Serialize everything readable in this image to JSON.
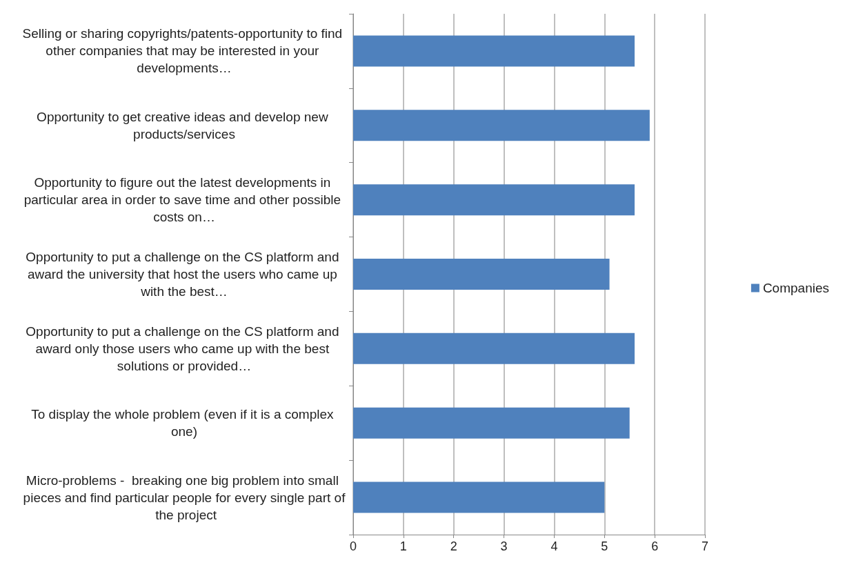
{
  "chart_data": {
    "type": "bar",
    "orientation": "horizontal",
    "categories": [
      "Selling or sharing copyrights/patents-opportunity to find other companies that may be interested in your developments…",
      "Opportunity to get creative ideas and develop new products/services",
      "Opportunity to figure out the latest developments in particular area in order to save time and other possible costs on…",
      "Opportunity to put a challenge on the CS platform and award the university that host the users who came up with the best…",
      "Opportunity to put a challenge on the CS platform and award only those users who came up with the best solutions or provided…",
      "To display the whole problem (even if it is a complex one)",
      "Micro-problems -  breaking one big problem into small pieces and find particular people for every single part of the project"
    ],
    "series": [
      {
        "name": "Companies",
        "color": "#4f81bd",
        "values": [
          5.6,
          5.9,
          5.6,
          5.1,
          5.6,
          5.5,
          5.0
        ]
      }
    ],
    "xlim": [
      0,
      7
    ],
    "xticks": [
      0,
      1,
      2,
      3,
      4,
      5,
      6,
      7
    ],
    "grid": "x",
    "legend": "right"
  }
}
